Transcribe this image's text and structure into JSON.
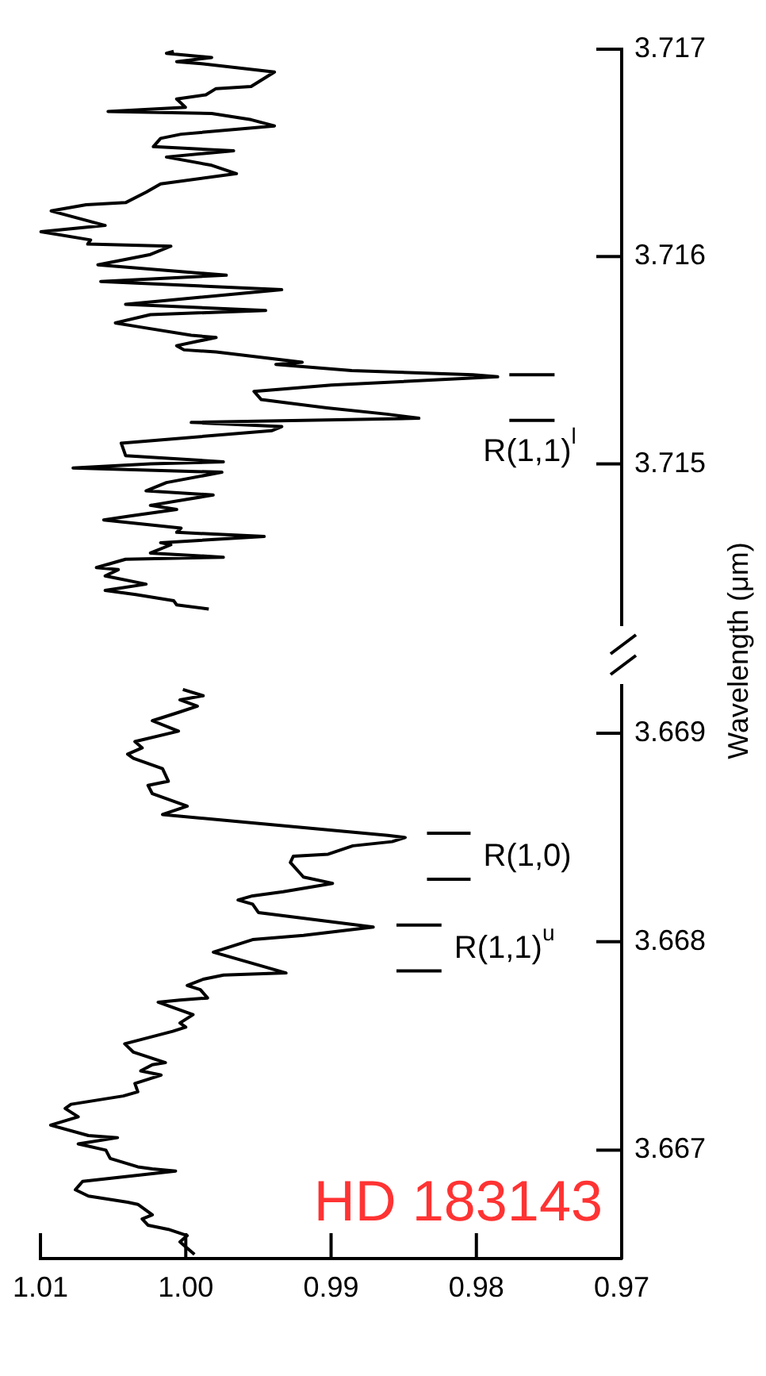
{
  "chart_data": [
    {
      "type": "line",
      "title": "HD 183143",
      "ylabel": "Wavelength (μm)",
      "ylim": [
        3.66648,
        3.66923
      ],
      "yticks": [
        3.667,
        3.668,
        3.669
      ],
      "xlim": [
        1.01,
        0.97
      ],
      "xticks": [
        1.01,
        {
          "value": 1,
          "label": "1.00"
        },
        0.99,
        0.98,
        0.97
      ],
      "grid": false,
      "series": [
        {
          "color": "#000000",
          "values": [
            3.6665,
            3.66656,
            3.66659,
            3.66662,
            3.66664,
            3.66667,
            3.66669,
            3.66674,
            3.66675,
            3.66678,
            3.66681,
            3.66685,
            3.6669,
            3.66691,
            3.66692,
            3.66696,
            3.667,
            3.66703,
            3.66706,
            3.66707,
            3.66712,
            3.66716,
            3.6672,
            3.66722,
            3.66726,
            3.66728,
            3.66732,
            3.66736,
            3.66738,
            3.66741,
            3.66742,
            3.66747,
            3.66751,
            3.66757,
            3.66759,
            3.66761,
            3.66765,
            3.66771,
            3.66772,
            3.66773,
            3.66777,
            3.66779,
            3.66782,
            3.66784,
            3.66785,
            3.66795,
            3.66801,
            3.66803,
            3.66807,
            3.66814,
            3.66818,
            3.6682,
            3.66822,
            3.66824,
            3.66828,
            3.66831,
            3.66838,
            3.66841,
            3.66842,
            3.66846,
            3.66848,
            3.6685,
            3.66851,
            3.66857,
            3.66861,
            3.66865,
            3.66871,
            3.66875,
            3.66877,
            3.66883,
            3.66888,
            3.6689,
            3.66893,
            3.66896,
            3.66901,
            3.66906,
            3.6691,
            3.66913,
            3.66916,
            3.66918,
            3.66921
          ],
          "x": [
            0.9994,
            1.0004,
            0.9999,
            1.0012,
            1.0026,
            1.003,
            1.0023,
            1.0033,
            1.004,
            1.0067,
            1.0076,
            1.0071,
            1.0007,
            1.0023,
            1.0033,
            1.0052,
            1.0055,
            1.0074,
            1.0047,
            1.0067,
            1.0093,
            1.0074,
            1.0083,
            1.0079,
            1.0043,
            1.0033,
            1.0035,
            1.0017,
            1.0031,
            1.0023,
            1.0014,
            1.0036,
            1.0042,
            1.0009,
            1.0,
            1.0004,
            0.9995,
            1.0019,
            1.0004,
            0.9985,
            0.999,
            0.9999,
            0.9988,
            0.9974,
            0.9931,
            0.9981,
            0.9954,
            0.9919,
            0.9871,
            0.995,
            0.9954,
            0.9964,
            0.9954,
            0.9933,
            0.9899,
            0.9919,
            0.9928,
            0.9926,
            0.9902,
            0.9885,
            0.9858,
            0.9849,
            0.9861,
            0.9954,
            1.0016,
            0.9999,
            1.0023,
            1.0026,
            1.0012,
            1.0016,
            1.0036,
            1.004,
            1.003,
            1.0035,
            1.0005,
            1.0023,
            1.0005,
            0.9992,
            1.0004,
            0.9988,
            1.0002
          ]
        },
        {
          "type": "line",
          "color": "#000000",
          "values": [
            3.66786,
            3.66786
          ],
          "x": [
            0.9855,
            0.9824
          ]
        },
        {
          "type": "line",
          "color": "#000000",
          "values": [
            3.66808,
            3.66808
          ],
          "x": [
            0.9855,
            0.9824
          ]
        },
        {
          "type": "line",
          "color": "#000000",
          "values": [
            3.6683,
            3.6683
          ],
          "x": [
            0.9834,
            0.9804
          ]
        },
        {
          "type": "line",
          "color": "#000000",
          "values": [
            3.66852,
            3.66852
          ],
          "x": [
            0.9834,
            0.9804
          ]
        }
      ],
      "annotations": [
        {
          "text": "R(1,1)$^{u}$",
          "x": 0.9824,
          "y": 3.66786
        },
        {
          "text": "R(1,0)",
          "x": 0.9804,
          "y": 3.6683
        }
      ]
    },
    {
      "type": "line",
      "ylim": [
        3.71422,
        3.717
      ],
      "yticks": [
        3.715,
        3.716,
        3.717
      ],
      "xlim": [
        1.01,
        0.97
      ],
      "tick_labels": "y",
      "grid": false,
      "series": [
        {
          "color": "#000000",
          "values": [
            3.7143,
            3.71432,
            3.71434,
            3.71437,
            3.71439,
            3.71442,
            3.71446,
            3.71449,
            3.7145,
            3.71452,
            3.71454,
            3.71455,
            3.71457,
            3.71461,
            3.71462,
            3.71465,
            3.71467,
            3.71469,
            3.71473,
            3.71475,
            3.71478,
            3.7148,
            3.71485,
            3.71487,
            3.71491,
            3.71496,
            3.71498,
            3.715,
            3.71501,
            3.71504,
            3.7151,
            3.71516,
            3.71518,
            3.7152,
            3.71522,
            3.71524,
            3.71527,
            3.71531,
            3.71535,
            3.71538,
            3.71542,
            3.71543,
            3.71545,
            3.71548,
            3.71549,
            3.71554,
            3.71555,
            3.71557,
            3.71561,
            3.71562,
            3.71566,
            3.71568,
            3.71572,
            3.71574,
            3.71577,
            3.71584,
            3.71588,
            3.71591,
            3.71596,
            3.71601,
            3.71605,
            3.71606,
            3.71608,
            3.71612,
            3.71615,
            3.71622,
            3.71625,
            3.71626,
            3.71631,
            3.71635,
            3.7164,
            3.71644,
            3.71648,
            3.71651,
            3.71653,
            3.71657,
            3.71659,
            3.71663,
            3.71666,
            3.71669,
            3.7167,
            3.71672,
            3.71676,
            3.71678,
            3.71681,
            3.71682,
            3.71689,
            3.71693,
            3.71694,
            3.71696,
            3.71698,
            3.71699
          ],
          "x": [
            0.9983,
            1.0005,
            1.0007,
            1.0033,
            1.0054,
            1.0026,
            1.0054,
            1.0045,
            1.006,
            1.005,
            1.004,
            0.9973,
            1.0023,
            1.0009,
            1.0016,
            0.9945,
            1.0005,
            1.0002,
            1.0055,
            1.0036,
            1.0005,
            1.0023,
            0.998,
            1.0026,
            1.0012,
            0.9974,
            1.0076,
            1.0023,
            0.9973,
            1.004,
            1.0043,
            0.994,
            0.9933,
            0.9995,
            0.9839,
            0.9861,
            0.9902,
            0.9947,
            0.9952,
            0.9899,
            0.9785,
            0.9802,
            0.9885,
            0.9937,
            0.9919,
            0.9978,
            1.0,
            1.0005,
            0.9978,
            0.9995,
            1.003,
            1.0047,
            1.0023,
            0.9944,
            1.004,
            0.9933,
            1.0057,
            0.9971,
            1.0059,
            1.0023,
            1.0009,
            1.0066,
            1.0064,
            1.0098,
            1.0054,
            1.0091,
            1.0067,
            1.004,
            1.0026,
            1.0016,
            0.9964,
            0.9981,
            1.0012,
            0.9966,
            1.0021,
            1.0016,
            1.0002,
            0.9938,
            0.9954,
            0.9981,
            1.0052,
            0.9999,
            1.0005,
            0.9985,
            0.9978,
            0.9954,
            0.9938,
            0.9988,
            1.0005,
            0.9981,
            1.0012,
            1.0007
          ]
        },
        {
          "type": "line",
          "color": "#000000",
          "values": [
            3.71521,
            3.71521
          ],
          "x": [
            0.9777,
            0.9746
          ]
        },
        {
          "type": "line",
          "color": "#000000",
          "values": [
            3.71543,
            3.71543
          ],
          "x": [
            0.9777,
            0.9746
          ]
        }
      ],
      "annotations": [
        {
          "text": "R(1,1)$^{l}$",
          "x": 0.9746,
          "y": 3.71521
        }
      ]
    }
  ]
}
